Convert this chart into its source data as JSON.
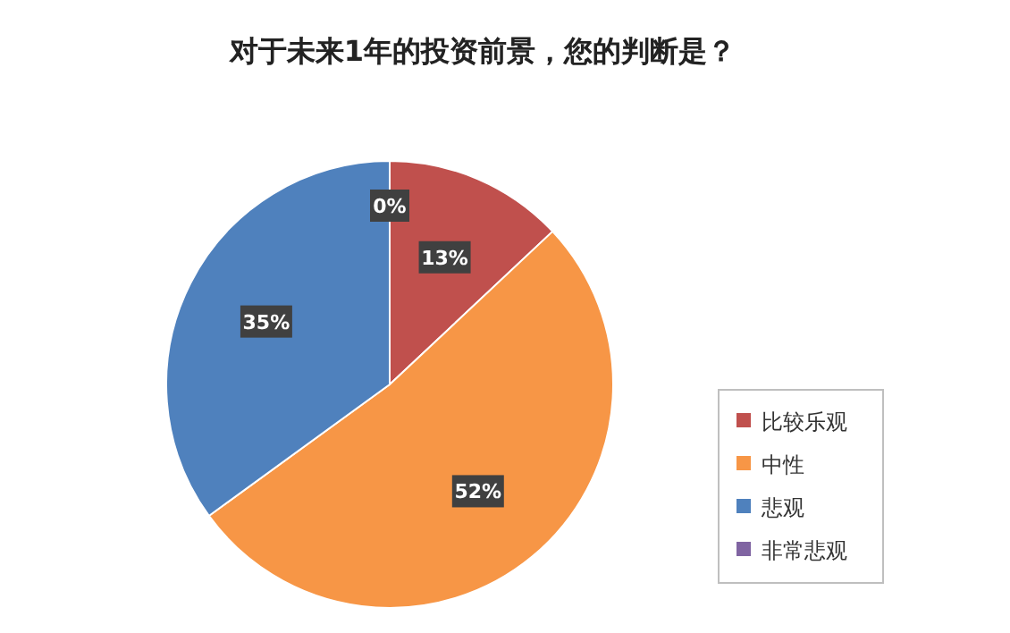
{
  "chart_data": {
    "type": "pie",
    "title": "对于未来1年的投资前景，您的判断是？",
    "categories": [
      "比较乐观",
      "中性",
      "悲观",
      "非常悲观"
    ],
    "values": [
      13,
      52,
      35,
      0
    ],
    "colors": [
      "#c0504d",
      "#f79646",
      "#4f81bd",
      "#8064a2"
    ],
    "value_labels": [
      "13%",
      "52%",
      "35%",
      "0%"
    ],
    "legend": "right"
  }
}
